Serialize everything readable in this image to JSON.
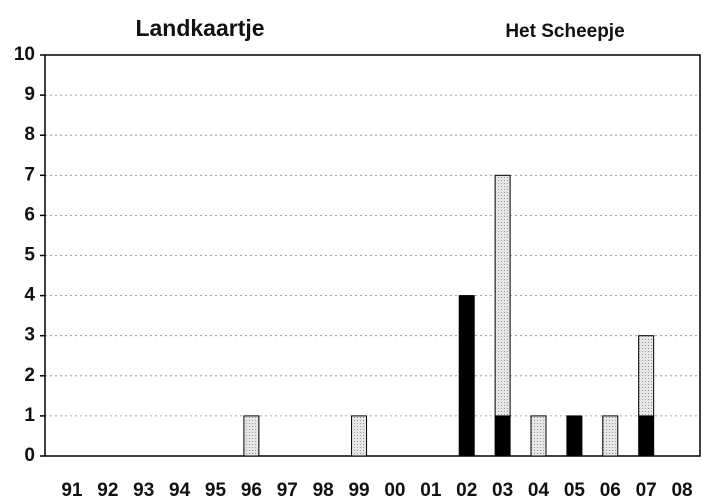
{
  "chart_data": {
    "type": "stacked_bar",
    "categories": [
      "91",
      "92",
      "93",
      "94",
      "95",
      "96",
      "97",
      "98",
      "99",
      "00",
      "01",
      "02",
      "03",
      "04",
      "05",
      "06",
      "07",
      "08"
    ],
    "series": [
      {
        "name": "Landkaartje",
        "color": "#000000",
        "values": [
          0,
          0,
          0,
          0,
          0,
          0,
          0,
          0,
          0,
          0,
          0,
          4,
          1,
          0,
          1,
          0,
          1,
          0
        ]
      },
      {
        "name": "Het Scheepje",
        "color": "#e4e4e4",
        "values": [
          0,
          0,
          0,
          0,
          0,
          1,
          0,
          0,
          1,
          0,
          0,
          0,
          6,
          1,
          0,
          1,
          2,
          0
        ]
      }
    ],
    "ylim": [
      0,
      10
    ],
    "yticks": [
      0,
      1,
      2,
      3,
      4,
      5,
      6,
      7,
      8,
      9,
      10
    ],
    "grid": true
  }
}
